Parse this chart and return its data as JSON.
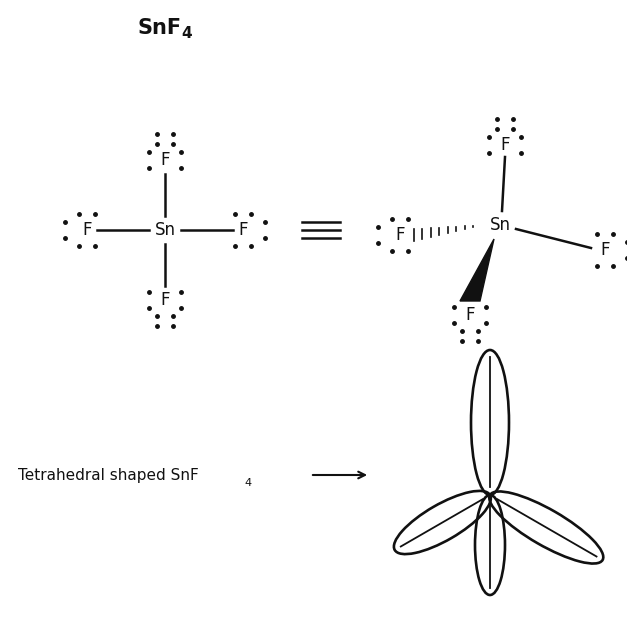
{
  "title_text": "SnF",
  "title_sub": "4",
  "title_fontsize": 15,
  "bg_color": "#ffffff",
  "fig_width": 6.27,
  "fig_height": 6.39,
  "text_color": "#111111",
  "fs_chem": 12,
  "bottom_label": "Tetrahedral shaped SnF",
  "bottom_sub": "4"
}
